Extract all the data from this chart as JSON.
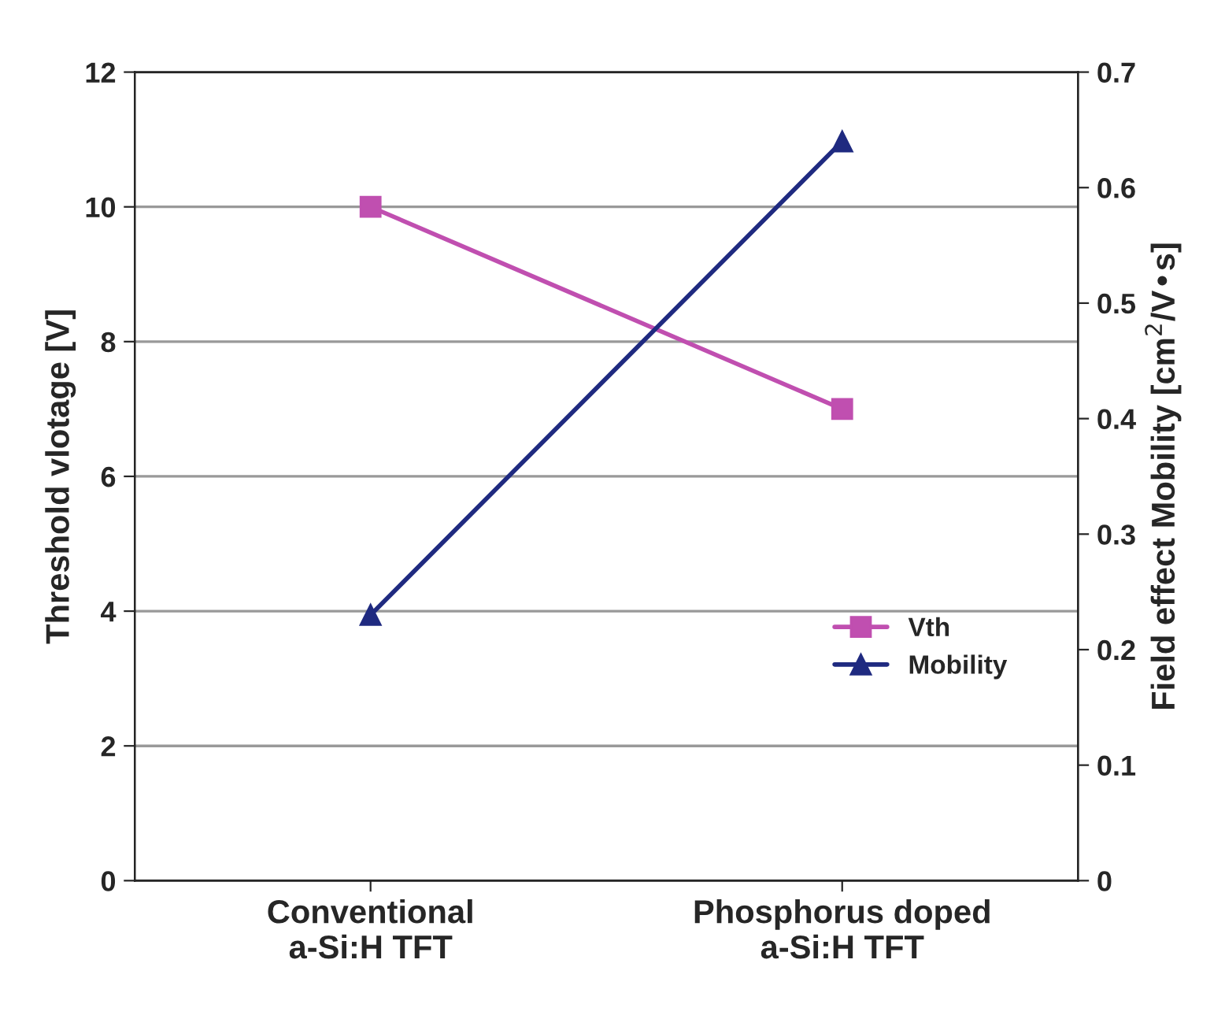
{
  "chart_data": {
    "type": "line",
    "ylabel": "Threshold vlotage [V]",
    "y2label": "Field effect Mobility [cm$^{2}$/V•s]",
    "categories": [
      "Conventional\na-Si:H TFT",
      "Phosphorus doped\na-Si:H TFT"
    ],
    "series": [
      {
        "name": "Vth",
        "color": "#c04fb0",
        "values": [
          10,
          7
        ],
        "marker": "square"
      },
      {
        "name": "Mobility",
        "color": "#1f2a80",
        "values": [
          0.23,
          0.64
        ],
        "marker": "triangle",
        "axis": "y2"
      }
    ],
    "ylim": [
      0,
      12
    ],
    "yticks": [
      0,
      2,
      4,
      6,
      8,
      10,
      12
    ],
    "y2lim": [
      0,
      0.7
    ],
    "y2ticks": [
      0,
      0.1,
      0.2,
      0.3,
      0.4,
      0.5,
      0.6,
      0.7
    ],
    "grid": "y",
    "legend": "bottom right"
  }
}
